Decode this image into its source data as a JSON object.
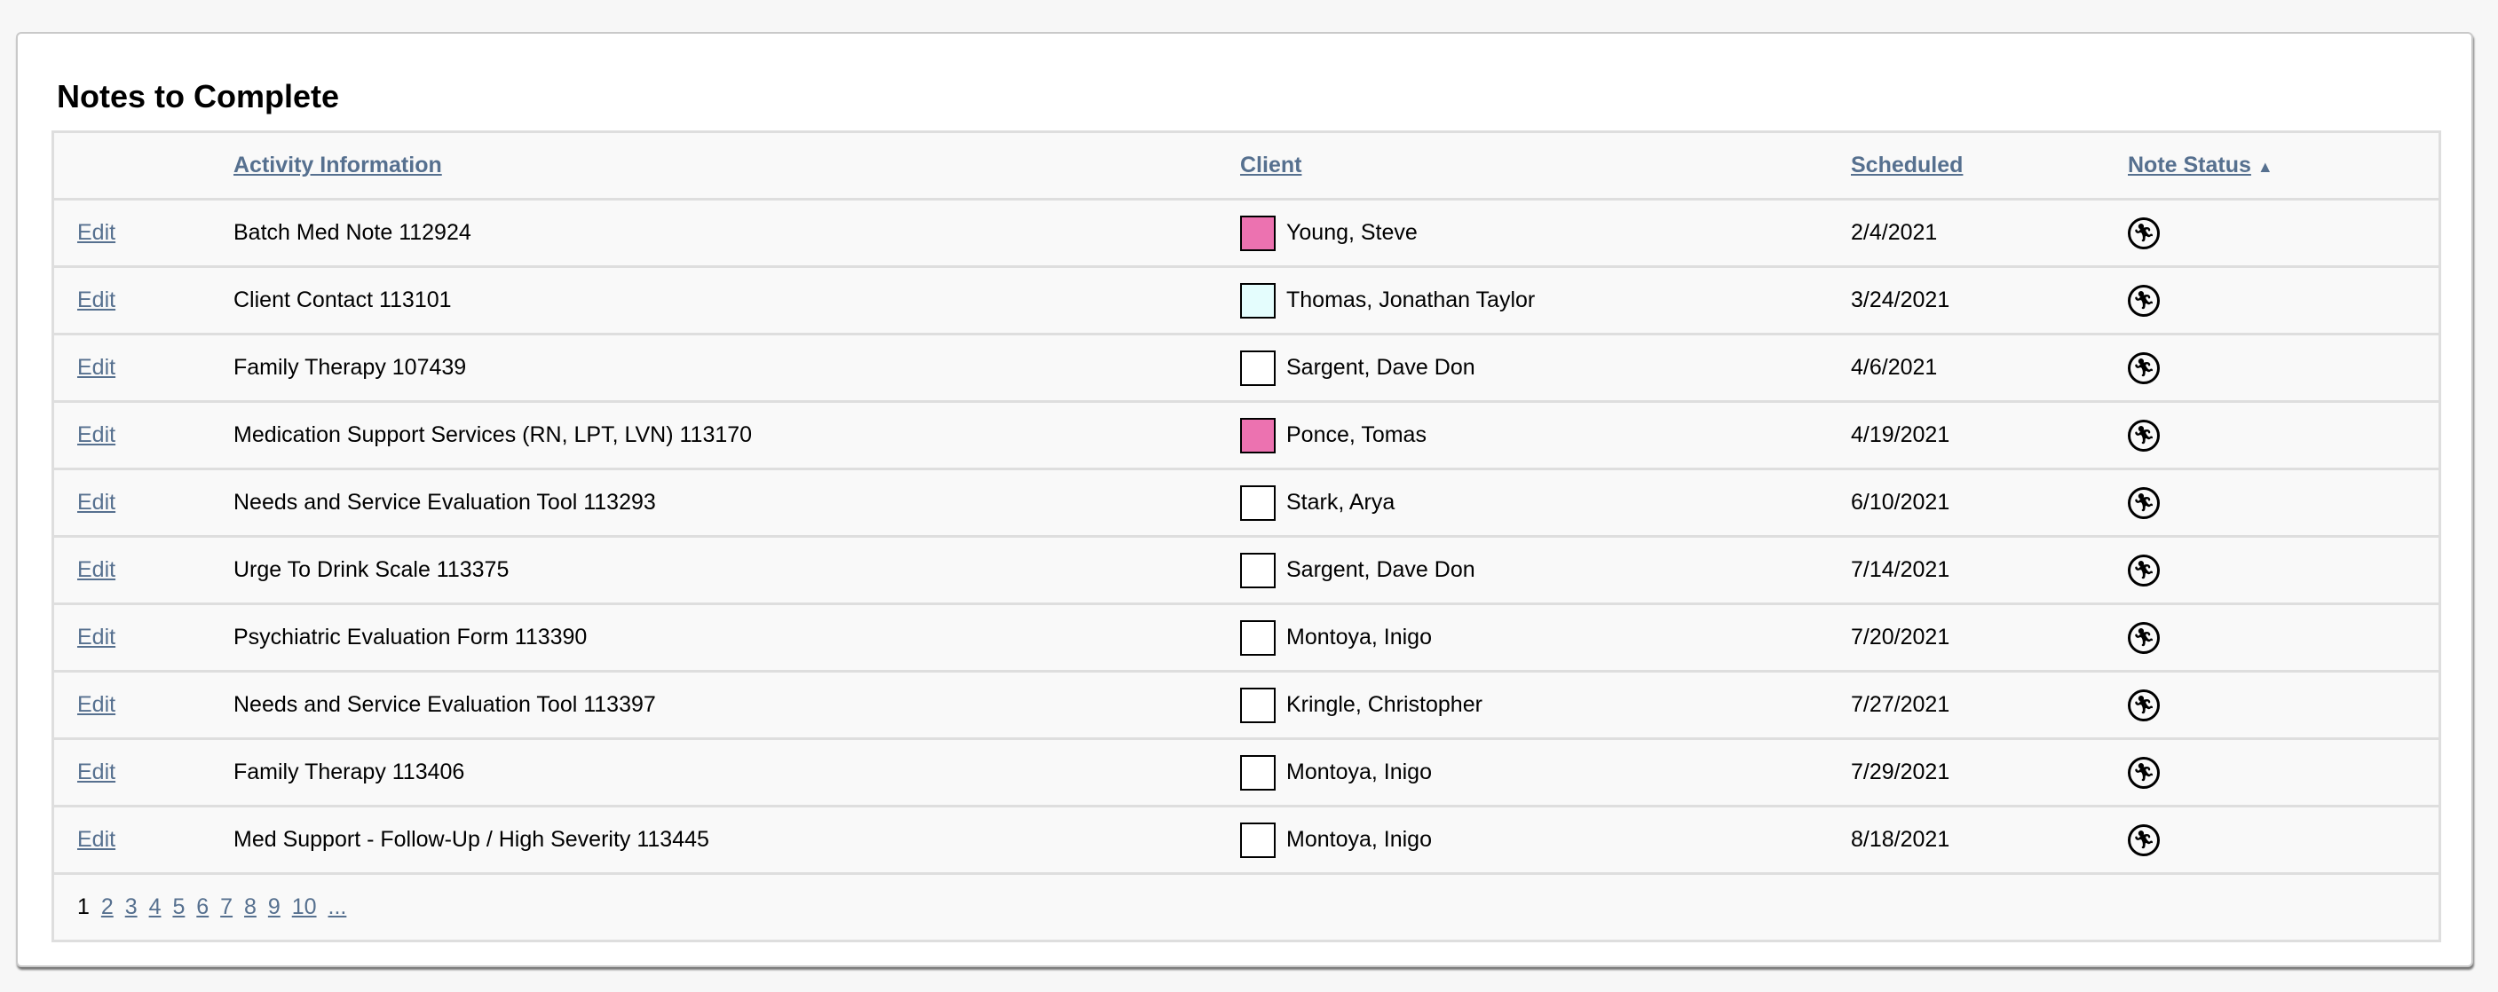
{
  "title": "Notes to Complete",
  "columns": {
    "activity": "Activity Information",
    "client": "Client",
    "scheduled": "Scheduled",
    "status": "Note Status",
    "status_sort": "▲"
  },
  "edit_label": "Edit",
  "rows": [
    {
      "activity": "Batch Med Note 112924",
      "client": "Young, Steve",
      "color": "#ec72b0",
      "scheduled": "2/4/2021",
      "status_icon": "running-person-icon"
    },
    {
      "activity": "Client Contact 113101",
      "client": "Thomas, Jonathan Taylor",
      "color": "#e4fdfd",
      "scheduled": "3/24/2021",
      "status_icon": "running-person-icon"
    },
    {
      "activity": "Family Therapy 107439",
      "client": "Sargent, Dave Don",
      "color": "#ffffff",
      "scheduled": "4/6/2021",
      "status_icon": "running-person-icon"
    },
    {
      "activity": "Medication Support Services (RN, LPT, LVN) 113170",
      "client": "Ponce, Tomas",
      "color": "#ec72b0",
      "scheduled": "4/19/2021",
      "status_icon": "running-person-icon"
    },
    {
      "activity": "Needs and Service Evaluation Tool 113293",
      "client": "Stark, Arya",
      "color": "#ffffff",
      "scheduled": "6/10/2021",
      "status_icon": "running-person-icon"
    },
    {
      "activity": "Urge To Drink Scale 113375",
      "client": "Sargent, Dave Don",
      "color": "#ffffff",
      "scheduled": "7/14/2021",
      "status_icon": "running-person-icon"
    },
    {
      "activity": "Psychiatric Evaluation Form 113390",
      "client": "Montoya, Inigo",
      "color": "#ffffff",
      "scheduled": "7/20/2021",
      "status_icon": "running-person-icon"
    },
    {
      "activity": "Needs and Service Evaluation Tool 113397",
      "client": "Kringle, Christopher",
      "color": "#ffffff",
      "scheduled": "7/27/2021",
      "status_icon": "running-person-icon"
    },
    {
      "activity": "Family Therapy 113406",
      "client": "Montoya, Inigo",
      "color": "#ffffff",
      "scheduled": "7/29/2021",
      "status_icon": "running-person-icon"
    },
    {
      "activity": "Med Support - Follow-Up / High Severity 113445",
      "client": "Montoya, Inigo",
      "color": "#ffffff",
      "scheduled": "8/18/2021",
      "status_icon": "running-person-icon"
    }
  ],
  "pagination": {
    "current": "1",
    "pages": [
      "2",
      "3",
      "4",
      "5",
      "6",
      "7",
      "8",
      "9",
      "10",
      "..."
    ]
  },
  "colors": {
    "link": "#56708f",
    "row_bg": "#f9f9f9",
    "border": "#dedede"
  }
}
